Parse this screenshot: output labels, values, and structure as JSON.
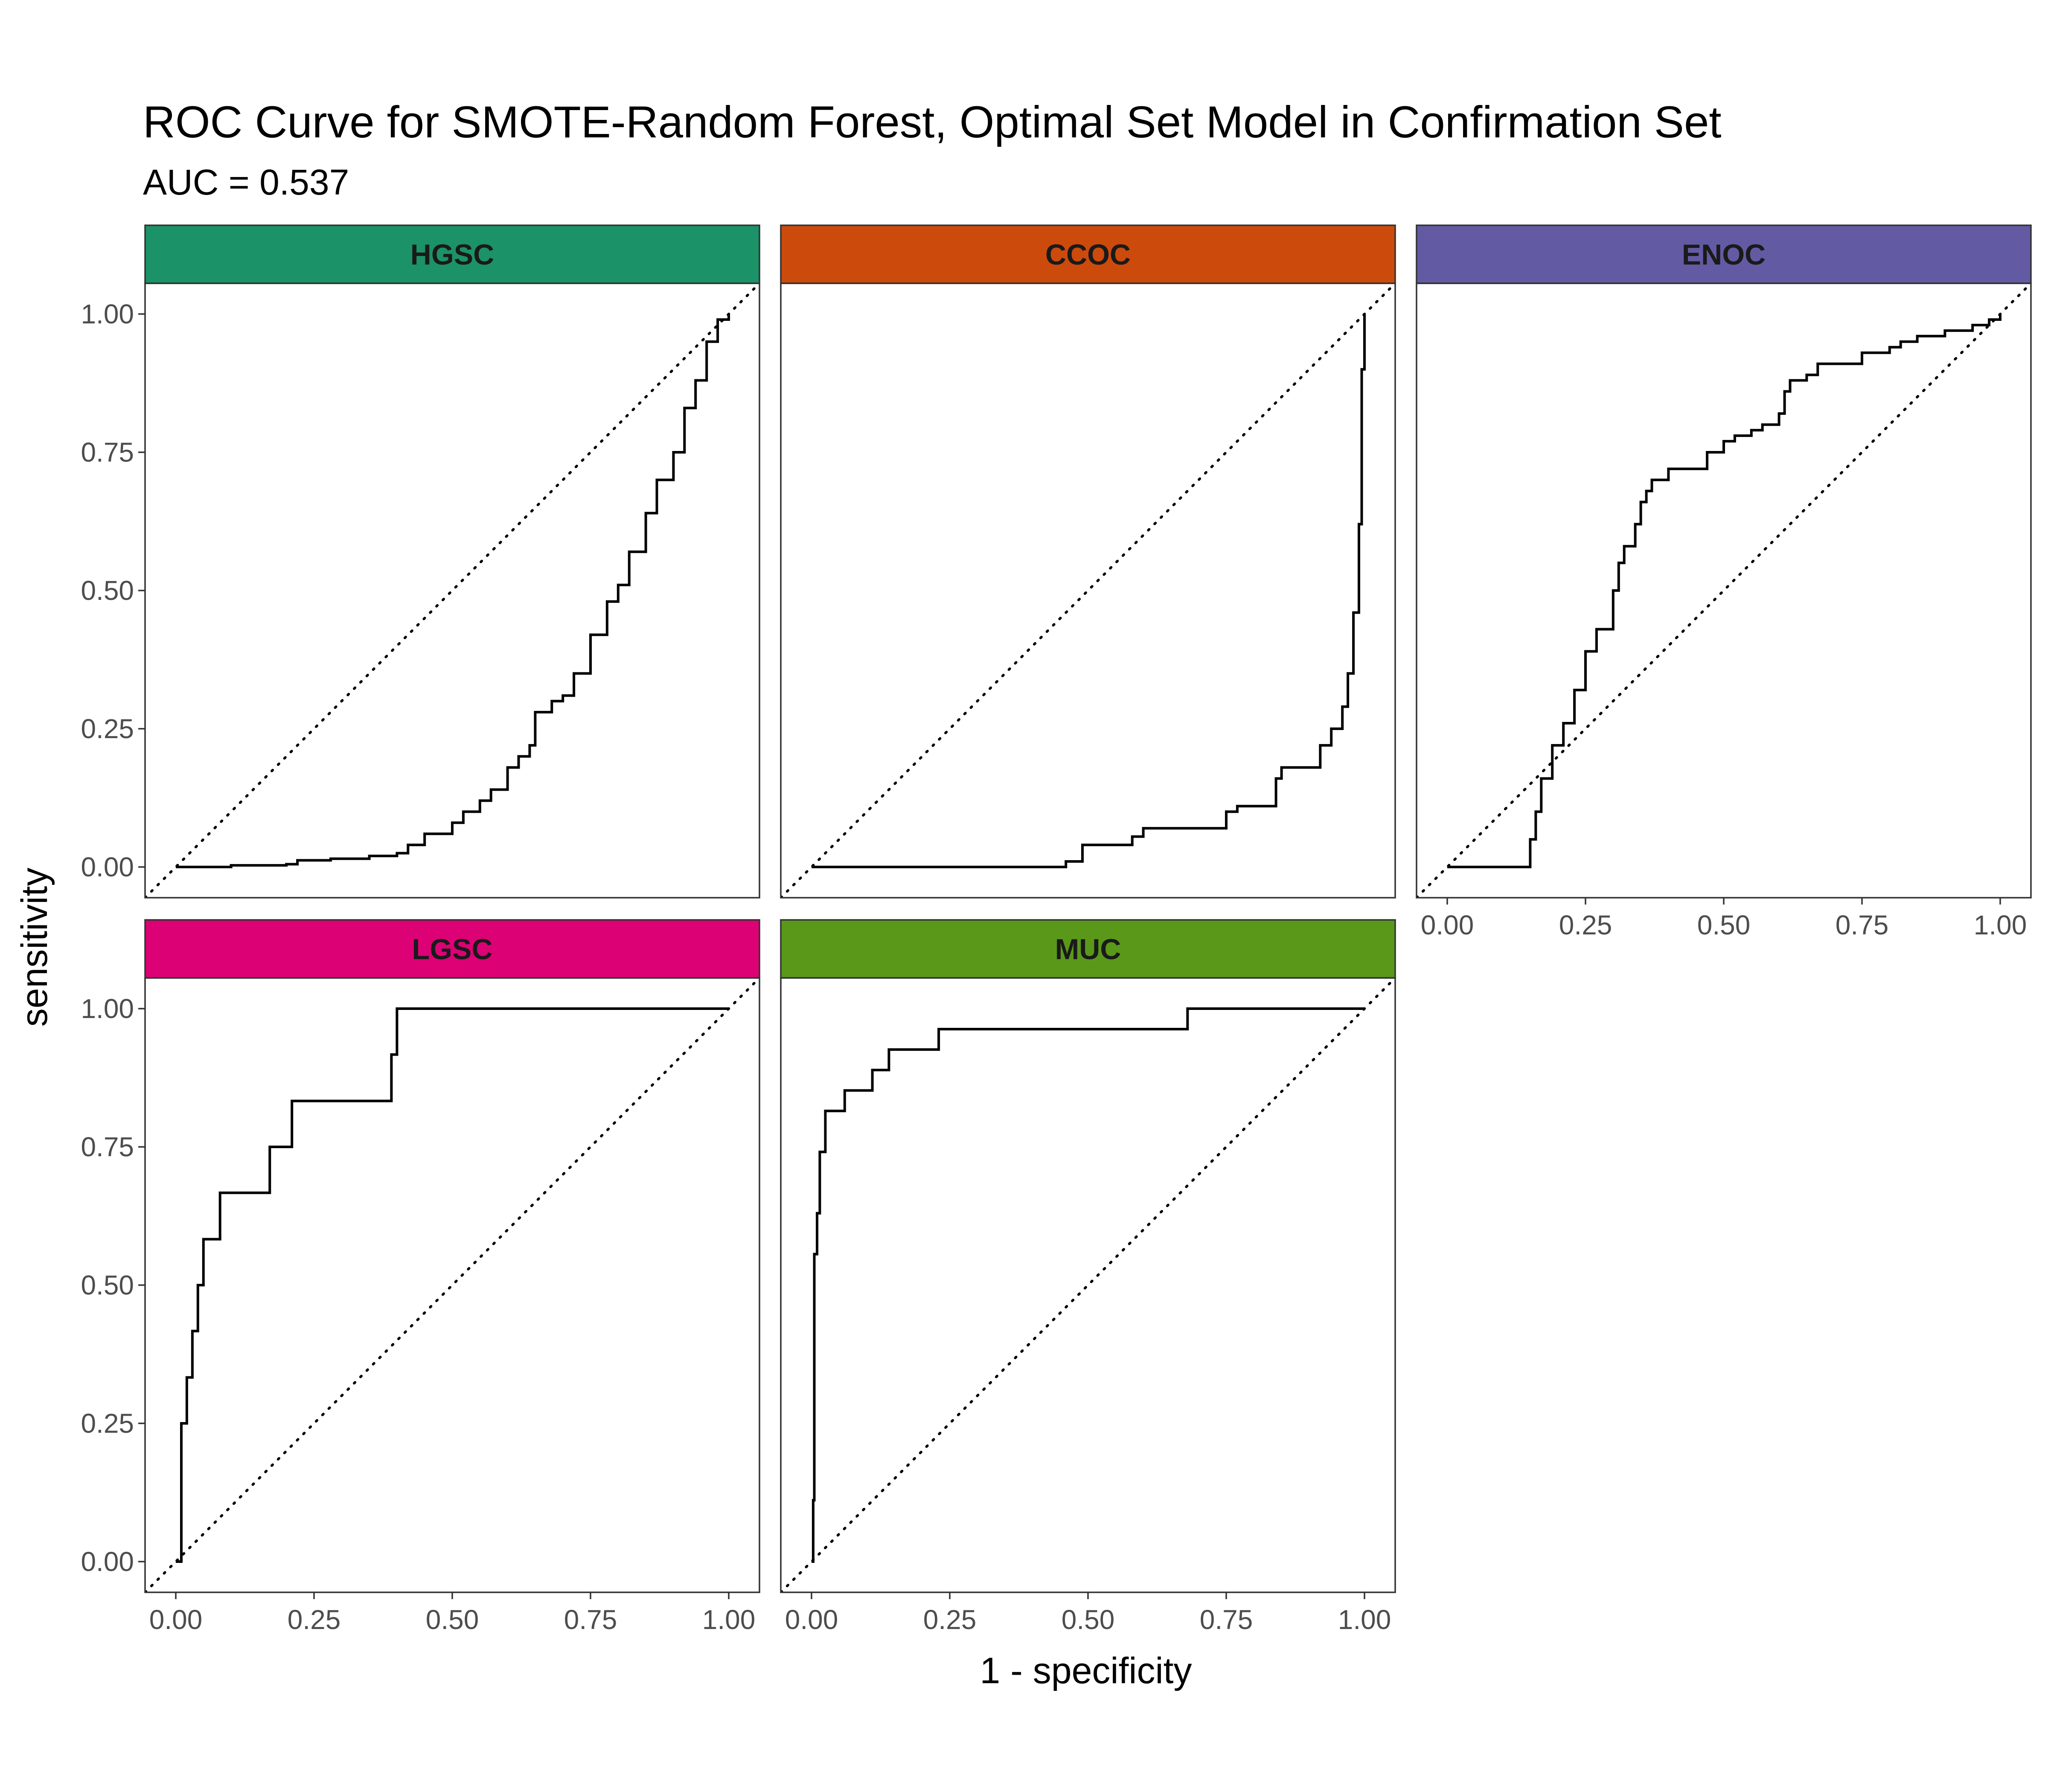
{
  "chart_data": {
    "type": "line",
    "title": "ROC Curve for SMOTE-Random Forest, Optimal Set Model in Confirmation Set",
    "subtitle": "AUC = 0.537",
    "xlabel": "1 - specificity",
    "ylabel": "sensitivity",
    "xlim": [
      0,
      1
    ],
    "ylim": [
      0,
      1
    ],
    "x_ticks": [
      "0.00",
      "0.25",
      "0.50",
      "0.75",
      "1.00"
    ],
    "y_ticks": [
      "0.00",
      "0.25",
      "0.50",
      "0.75",
      "1.00"
    ],
    "grid": false,
    "reference_line": "diagonal, dotted",
    "facets": [
      {
        "name": "HGSC",
        "strip_color": "#1b9268",
        "x": [
          0,
          0.05,
          0.1,
          0.2,
          0.22,
          0.28,
          0.35,
          0.4,
          0.42,
          0.45,
          0.5,
          0.52,
          0.55,
          0.57,
          0.6,
          0.62,
          0.64,
          0.65,
          0.68,
          0.7,
          0.72,
          0.75,
          0.78,
          0.8,
          0.82,
          0.85,
          0.87,
          0.9,
          0.92,
          0.94,
          0.96,
          0.98,
          1.0
        ],
        "y": [
          0,
          0,
          0.003,
          0.005,
          0.012,
          0.015,
          0.02,
          0.025,
          0.04,
          0.06,
          0.08,
          0.1,
          0.12,
          0.14,
          0.18,
          0.2,
          0.22,
          0.28,
          0.3,
          0.31,
          0.35,
          0.42,
          0.48,
          0.51,
          0.57,
          0.64,
          0.7,
          0.75,
          0.83,
          0.88,
          0.95,
          0.99,
          1.0
        ]
      },
      {
        "name": "CCOC",
        "strip_color": "#cc4a0c",
        "x": [
          0,
          0.45,
          0.46,
          0.49,
          0.5,
          0.58,
          0.6,
          0.66,
          0.7,
          0.75,
          0.77,
          0.82,
          0.84,
          0.85,
          0.86,
          0.92,
          0.94,
          0.96,
          0.97,
          0.98,
          0.99,
          0.995,
          1.0
        ],
        "y": [
          0,
          0,
          0.01,
          0.04,
          0.04,
          0.055,
          0.07,
          0.07,
          0.07,
          0.1,
          0.11,
          0.11,
          0.16,
          0.18,
          0.18,
          0.22,
          0.25,
          0.29,
          0.35,
          0.46,
          0.62,
          0.9,
          1.0
        ]
      },
      {
        "name": "ENOC",
        "strip_color": "#625ba3",
        "x": [
          0,
          0.13,
          0.15,
          0.16,
          0.17,
          0.19,
          0.21,
          0.23,
          0.25,
          0.27,
          0.3,
          0.31,
          0.32,
          0.34,
          0.35,
          0.36,
          0.37,
          0.38,
          0.4,
          0.45,
          0.47,
          0.5,
          0.52,
          0.55,
          0.57,
          0.6,
          0.61,
          0.62,
          0.65,
          0.67,
          0.7,
          0.75,
          0.78,
          0.8,
          0.82,
          0.85,
          0.9,
          0.95,
          0.98,
          1.0
        ],
        "y": [
          0,
          0,
          0.05,
          0.1,
          0.16,
          0.22,
          0.26,
          0.32,
          0.39,
          0.43,
          0.5,
          0.55,
          0.58,
          0.62,
          0.66,
          0.68,
          0.7,
          0.7,
          0.72,
          0.72,
          0.75,
          0.77,
          0.78,
          0.79,
          0.8,
          0.82,
          0.86,
          0.88,
          0.89,
          0.91,
          0.91,
          0.93,
          0.93,
          0.94,
          0.95,
          0.96,
          0.97,
          0.98,
          0.99,
          1.0
        ]
      },
      {
        "name": "LGSC",
        "strip_color": "#dd0176",
        "x": [
          0,
          0.01,
          0.02,
          0.03,
          0.04,
          0.05,
          0.08,
          0.17,
          0.21,
          0.39,
          0.4,
          1.0
        ],
        "y": [
          0,
          0.25,
          0.333,
          0.417,
          0.5,
          0.583,
          0.667,
          0.75,
          0.833,
          0.917,
          1.0,
          1.0
        ]
      },
      {
        "name": "MUC",
        "strip_color": "#5a981a",
        "x": [
          0,
          0.003,
          0.005,
          0.01,
          0.015,
          0.025,
          0.06,
          0.11,
          0.14,
          0.23,
          0.68,
          1.0
        ],
        "y": [
          0,
          0.111,
          0.556,
          0.63,
          0.741,
          0.815,
          0.852,
          0.889,
          0.926,
          0.963,
          1.0,
          1.0
        ]
      }
    ]
  }
}
